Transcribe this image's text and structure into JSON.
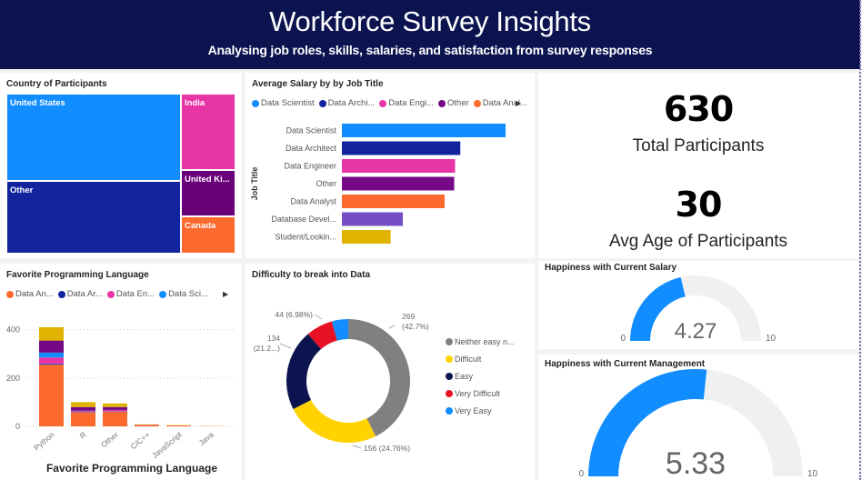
{
  "header": {
    "title": "Workforce Survey Insights",
    "subtitle": "Analysing job roles, skills, salaries, and satisfaction from survey responses"
  },
  "colors": {
    "header_bg": "#0c1450",
    "data_scientist": "#118dff",
    "data_architect": "#12239e",
    "data_engineer": "#e835a6",
    "other": "#750985",
    "data_analyst": "#fd6a2d",
    "database_developer": "#744ec2",
    "student": "#e0b300",
    "gauge_fill": "#118dff",
    "gauge_bg": "#f0f0f0"
  },
  "treemap": {
    "title": "Country of Participants",
    "chart_data": {
      "type": "treemap",
      "title": "Country of Participants",
      "items": [
        {
          "label": "United States",
          "value": 261,
          "color": "#118dff"
        },
        {
          "label": "Other",
          "value": 216,
          "color": "#12239e"
        },
        {
          "label": "India",
          "value": 71,
          "color": "#e835a6"
        },
        {
          "label": "United Ki...",
          "value": 43,
          "color": "#6b007b"
        },
        {
          "label": "Canada",
          "value": 35,
          "color": "#fd6a2d"
        }
      ]
    }
  },
  "salary_chart": {
    "title": "Average Salary by by Job Title",
    "legend": [
      {
        "label": "Data Scientist",
        "color": "#118dff"
      },
      {
        "label": "Data Archi...",
        "color": "#12239e"
      },
      {
        "label": "Data Engi...",
        "color": "#e835a6"
      },
      {
        "label": "Other",
        "color": "#750985"
      },
      {
        "label": "Data Anal...",
        "color": "#fd6a2d"
      }
    ],
    "chart_data": {
      "type": "bar",
      "orientation": "horizontal",
      "title": "Average Salary by by Job Title",
      "ylabel": "Job Title",
      "xlabel": "",
      "categories": [
        "Data Scientist",
        "Data Architect",
        "Data Engineer",
        "Other",
        "Data Analyst",
        "Database Devel...",
        "Student/Lookin..."
      ],
      "values": [
        94,
        68,
        65,
        64.5,
        59,
        35,
        28
      ],
      "colors": [
        "#118dff",
        "#12239e",
        "#e835a6",
        "#750985",
        "#fd6a2d",
        "#744ec2",
        "#e0b300"
      ]
    }
  },
  "kpis": [
    {
      "value": "630",
      "label": "Total Participants"
    },
    {
      "value": "30",
      "label": "Avg Age of Participants"
    }
  ],
  "language_chart": {
    "title": "Favorite Programming Language",
    "legend": [
      {
        "label": "Data An...",
        "color": "#fd6a2d"
      },
      {
        "label": "Data Ar...",
        "color": "#12239e"
      },
      {
        "label": "Data En...",
        "color": "#e835a6"
      },
      {
        "label": "Data Sci...",
        "color": "#118dff"
      }
    ],
    "chart_data": {
      "type": "bar",
      "stacked": true,
      "title": "Favorite Programming Language",
      "xlabel": "Favorite Programming Language",
      "ylabel": "",
      "yticks": [
        0,
        200,
        400
      ],
      "ylim": [
        0,
        440
      ],
      "categories": [
        "Python",
        "R",
        "Other",
        "C/C++",
        "JavaScript",
        "Java"
      ],
      "series": [
        {
          "name": "Data Analyst",
          "color": "#fd6a2d",
          "values": [
            255,
            58,
            60,
            6,
            4,
            1
          ]
        },
        {
          "name": "Data Architect",
          "color": "#12239e",
          "values": [
            3,
            1,
            1,
            0,
            0,
            0
          ]
        },
        {
          "name": "Data Database Developer",
          "color": "#744ec2",
          "values": [
            2,
            4,
            2,
            0,
            0,
            0
          ]
        },
        {
          "name": "Data Engineer",
          "color": "#e835a6",
          "values": [
            25,
            2,
            5,
            0,
            0,
            0
          ]
        },
        {
          "name": "Data Scientist",
          "color": "#118dff",
          "values": [
            20,
            0,
            0,
            0,
            0,
            0
          ]
        },
        {
          "name": "Other",
          "color": "#750985",
          "values": [
            50,
            15,
            12,
            1,
            0,
            0
          ]
        },
        {
          "name": "Student/Looking",
          "color": "#e0b300",
          "values": [
            55,
            20,
            15,
            1,
            1,
            0
          ]
        }
      ]
    }
  },
  "difficulty_chart": {
    "title": "Difficulty to break into Data",
    "chart_data": {
      "type": "pie",
      "donut": true,
      "title": "Difficulty to break into Data",
      "slices": [
        {
          "label": "Neither easy n...",
          "value": 269,
          "percent": "42.7%",
          "data_label": [
            "269",
            "(42.7%)"
          ],
          "color": "#808080"
        },
        {
          "label": "Difficult",
          "value": 156,
          "percent": "24.76%",
          "data_label": [
            "156 (24.76%)"
          ],
          "color": "#ffd200"
        },
        {
          "label": "Easy",
          "value": 134,
          "percent": "21.2...",
          "data_label": [
            "134",
            "(21.2...)"
          ],
          "color": "#0c1450"
        },
        {
          "label": "Very Difficult",
          "value": 44,
          "percent": "6.98%",
          "data_label": [
            "44 (6.98%)"
          ],
          "color": "#e81123"
        },
        {
          "label": "Very Easy",
          "value": 27,
          "percent": "",
          "data_label": [],
          "color": "#118dff"
        }
      ]
    }
  },
  "gauges": [
    {
      "title": "Happiness with Current Salary",
      "value": 4.27,
      "value_label": "4.27",
      "min": 0,
      "max": 10,
      "min_label": "0",
      "max_label": "10"
    },
    {
      "title": "Happiness with Current Management",
      "value": 5.33,
      "value_label": "5.33",
      "min": 0,
      "max": 10,
      "min_label": "0",
      "max_label": "10"
    }
  ]
}
